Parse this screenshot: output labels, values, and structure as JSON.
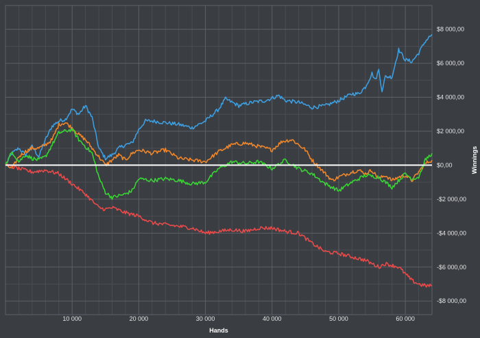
{
  "chart_data": {
    "type": "line",
    "title": "",
    "xlabel": "Hands",
    "ylabel": "Winnings",
    "xlim": [
      0,
      64000
    ],
    "ylim": [
      -8800,
      9400
    ],
    "grid": true,
    "legend": "none",
    "x_ticks": [
      {
        "value": 10000,
        "label": "10 000"
      },
      {
        "value": 20000,
        "label": "20 000"
      },
      {
        "value": 30000,
        "label": "30 000"
      },
      {
        "value": 40000,
        "label": "40 000"
      },
      {
        "value": 50000,
        "label": "50 000"
      },
      {
        "value": 60000,
        "label": "60 000"
      }
    ],
    "y_ticks": [
      {
        "value": 8000,
        "label": "$8 000,00"
      },
      {
        "value": 6000,
        "label": "$6 000,00"
      },
      {
        "value": 4000,
        "label": "$4 000,00"
      },
      {
        "value": 2000,
        "label": "$2 000,00"
      },
      {
        "value": 0,
        "label": "$0,00"
      },
      {
        "value": -2000,
        "label": "-$2 000,00"
      },
      {
        "value": -4000,
        "label": "-$4 000,00"
      },
      {
        "value": -6000,
        "label": "-$6 000,00"
      },
      {
        "value": -8000,
        "label": "-$8 000,00"
      }
    ],
    "series": [
      {
        "color": "#3d9ee0",
        "x": [
          0,
          1000,
          2000,
          3000,
          4000,
          5000,
          6000,
          7000,
          8000,
          9000,
          10000,
          11000,
          12000,
          13000,
          14000,
          15000,
          16000,
          17000,
          18000,
          19000,
          20000,
          21000,
          22000,
          24000,
          26000,
          28000,
          30000,
          32000,
          33000,
          35000,
          37000,
          39000,
          41000,
          42000,
          44000,
          46000,
          48000,
          50000,
          52000,
          53000,
          54000,
          55000,
          55500,
          56000,
          56500,
          57000,
          58000,
          59000,
          60000,
          61000,
          62000,
          63000,
          64000
        ],
        "y": [
          0,
          700,
          1000,
          600,
          1100,
          500,
          1500,
          2300,
          2600,
          2700,
          3300,
          3000,
          3500,
          2800,
          1000,
          400,
          600,
          1000,
          1200,
          1300,
          2100,
          2600,
          2600,
          2500,
          2400,
          2200,
          2600,
          3300,
          3900,
          3500,
          3700,
          3800,
          4100,
          3800,
          3700,
          3400,
          3500,
          3800,
          4200,
          4200,
          4600,
          5400,
          5000,
          5600,
          4400,
          5200,
          5200,
          6800,
          6200,
          6100,
          6600,
          7300,
          7700
        ]
      },
      {
        "color": "#f0862a",
        "x": [
          0,
          1000,
          2000,
          3000,
          4000,
          5000,
          6000,
          7000,
          8000,
          9000,
          10000,
          11000,
          12000,
          13000,
          14000,
          15000,
          16000,
          17000,
          18000,
          19000,
          20000,
          22000,
          24000,
          26000,
          28000,
          30000,
          32000,
          34000,
          36000,
          38000,
          40000,
          41500,
          43000,
          45000,
          46000,
          47000,
          48000,
          49000,
          50000,
          52000,
          53000,
          54000,
          55000,
          56000,
          57000,
          58000,
          59000,
          60000,
          61000,
          62000,
          63000,
          64000
        ],
        "y": [
          0,
          -200,
          500,
          800,
          1000,
          1000,
          1200,
          1500,
          2400,
          2500,
          2200,
          1800,
          1500,
          1000,
          500,
          0,
          300,
          600,
          300,
          700,
          900,
          700,
          900,
          400,
          300,
          200,
          800,
          1200,
          1300,
          1100,
          900,
          1400,
          1500,
          900,
          300,
          -100,
          -500,
          -900,
          -700,
          -400,
          -300,
          -500,
          -300,
          -800,
          -600,
          -900,
          -700,
          -600,
          -900,
          -400,
          100,
          300
        ]
      },
      {
        "color": "#39d433",
        "x": [
          0,
          1000,
          2000,
          3000,
          4000,
          5000,
          6000,
          7000,
          8000,
          9000,
          10000,
          11000,
          12000,
          13000,
          14000,
          15000,
          16000,
          17000,
          18000,
          19000,
          20000,
          22000,
          24000,
          26000,
          28000,
          30000,
          32000,
          34000,
          36000,
          38000,
          40000,
          42000,
          44000,
          46000,
          48000,
          50000,
          52000,
          54000,
          56000,
          58000,
          60000,
          61000,
          62000,
          63000,
          64000
        ],
        "y": [
          0,
          800,
          200,
          600,
          400,
          300,
          500,
          1200,
          1900,
          2000,
          2100,
          1500,
          1100,
          700,
          -700,
          -1600,
          -1900,
          -1800,
          -1700,
          -1500,
          -800,
          -900,
          -800,
          -900,
          -1100,
          -1000,
          -200,
          200,
          100,
          200,
          -200,
          300,
          -200,
          -500,
          -1100,
          -1500,
          -1000,
          -600,
          -700,
          -1300,
          -500,
          -800,
          -700,
          300,
          700
        ]
      },
      {
        "color": "#e84a4a",
        "x": [
          0,
          2000,
          4000,
          6000,
          8000,
          10000,
          12000,
          14000,
          15000,
          16000,
          18000,
          20000,
          22000,
          24000,
          26000,
          28000,
          30000,
          32000,
          34000,
          36000,
          38000,
          40000,
          42000,
          44000,
          46000,
          48000,
          50000,
          52000,
          54000,
          56000,
          57000,
          58000,
          59000,
          60000,
          61000,
          62000,
          63000,
          64000
        ],
        "y": [
          0,
          -200,
          -400,
          -300,
          -500,
          -1100,
          -1700,
          -2500,
          -2600,
          -2500,
          -2800,
          -3000,
          -3400,
          -3500,
          -3600,
          -3700,
          -4000,
          -3900,
          -3800,
          -3900,
          -3700,
          -3700,
          -3900,
          -4000,
          -4600,
          -5100,
          -5200,
          -5400,
          -5600,
          -6000,
          -5800,
          -5900,
          -6000,
          -6400,
          -6800,
          -7000,
          -7100,
          -7100
        ]
      }
    ]
  }
}
